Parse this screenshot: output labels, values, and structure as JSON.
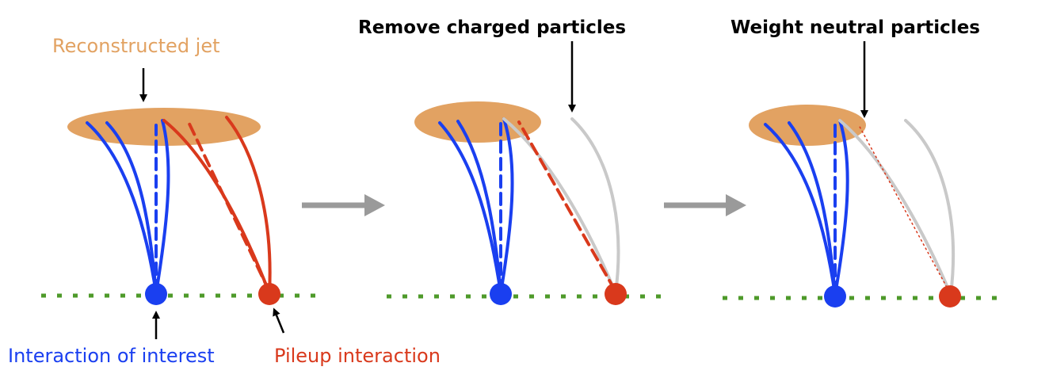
{
  "labels": {
    "reconstructed_jet": "Reconstructed jet",
    "step_remove": "Remove charged particles",
    "step_weight": "Weight neutral particles",
    "interaction_interest": "Interaction of interest",
    "pileup_interaction": "Pileup interaction"
  },
  "colors": {
    "jet": "#e2a262",
    "jet_text": "#e2a262",
    "interest": "#1a3ff0",
    "pileup": "#d9391c",
    "removed": "#c9c9c9",
    "beamline": "#4e9a2a",
    "arrow": "#9a9a9a",
    "pointer": "#000000"
  },
  "icons": [
    "down-arrow-pointer",
    "up-arrow-pointer",
    "right-arrow-icon"
  ]
}
